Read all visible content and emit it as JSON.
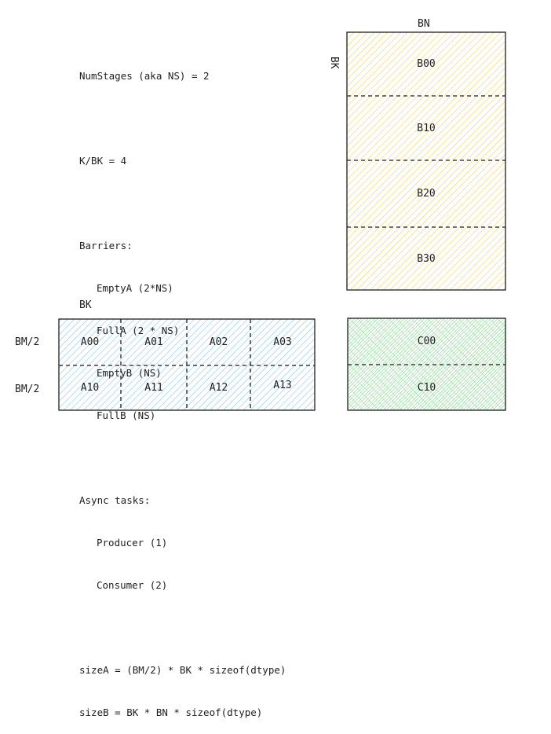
{
  "notes": [
    "NumStages (aka NS) = 2",
    "",
    "K/BK = 4",
    "",
    "Barriers:",
    "EmptyA (2*NS)",
    "FullA (2 * NS)",
    "EmptyB (NS)",
    "FullB (NS)",
    "",
    "Async tasks:",
    "Producer (1)",
    "Consumer (2)",
    "",
    "sizeA = (BM/2) * BK * sizeof(dtype)",
    "sizeB = BK * BN * sizeof(dtype)"
  ],
  "indented_lines": [
    5,
    6,
    7,
    8,
    11,
    12
  ],
  "matrix_b": {
    "top_label": "BN",
    "side_label": "BK",
    "cells": [
      "B00",
      "B10",
      "B20",
      "B30"
    ],
    "color": "#f0d060"
  },
  "matrix_a": {
    "top_label": "BK",
    "row_labels": [
      "BM/2",
      "BM/2"
    ],
    "cells": [
      [
        "A00",
        "A01",
        "A02",
        "A03"
      ],
      [
        "A10",
        "A11",
        "A12",
        "A13"
      ]
    ],
    "color": "#8cc4ea"
  },
  "matrix_c": {
    "cells": [
      "C00",
      "C10"
    ],
    "color": "#7ed08a"
  }
}
